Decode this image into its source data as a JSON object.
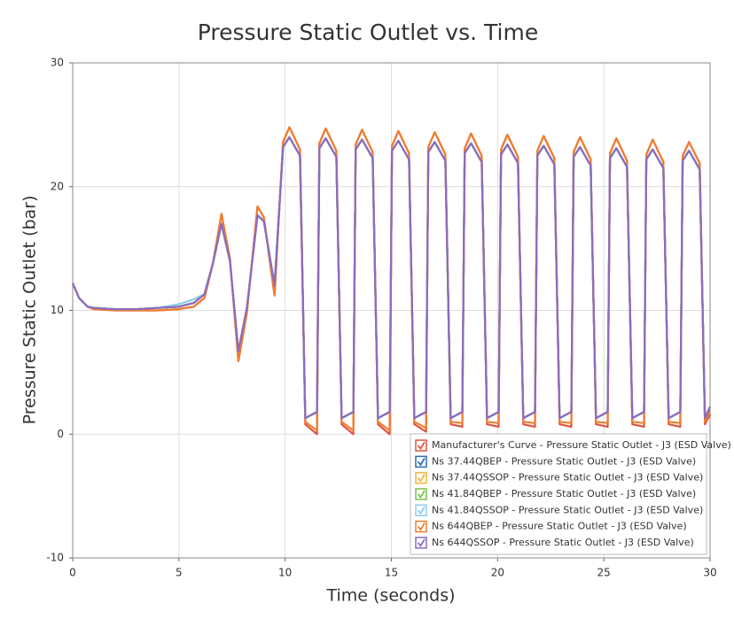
{
  "chart_data": {
    "type": "line",
    "title": "Pressure Static Outlet vs. Time",
    "xlabel": "Time (seconds)",
    "ylabel": "Pressure Static Outlet (bar)",
    "xlim": [
      0,
      30
    ],
    "ylim": [
      -10,
      30
    ],
    "xticks": [
      0,
      5,
      10,
      15,
      20,
      25,
      30
    ],
    "yticks": [
      -10,
      0,
      10,
      20,
      30
    ],
    "grid": true,
    "legend": "lower right",
    "x": [
      0,
      0.3,
      0.7,
      1,
      2,
      3,
      4,
      5,
      5.7,
      6.2,
      6.6,
      7,
      7.4,
      7.8,
      8.2,
      8.7,
      9,
      9.5,
      9.9,
      10.2,
      10.7,
      10.95,
      11.5,
      11.61,
      11.91,
      12.41,
      12.66,
      13.21,
      13.32,
      13.62,
      14.12,
      14.37,
      14.92,
      15.03,
      15.33,
      15.83,
      16.08,
      16.63,
      16.74,
      17.04,
      17.54,
      17.79,
      18.34,
      18.45,
      18.75,
      19.25,
      19.5,
      20.05,
      20.16,
      20.46,
      20.96,
      21.21,
      21.76,
      21.87,
      22.17,
      22.67,
      22.92,
      23.47,
      23.58,
      23.88,
      24.38,
      24.63,
      25.18,
      25.29,
      25.59,
      26.09,
      26.34,
      26.89,
      27.0,
      27.3,
      27.8,
      28.05,
      28.6,
      28.71,
      29.01,
      29.51,
      29.76,
      30
    ],
    "series": [
      {
        "name": "Manufacturer's Curve - Pressure Static Outlet - J3 (ESD Valve)",
        "color": "#e0533f",
        "values": [
          12.2,
          11,
          10.3,
          10.1,
          10.0,
          10.0,
          10.0,
          10.1,
          10.3,
          11.0,
          13.8,
          17.8,
          14.2,
          5.9,
          9.8,
          18.4,
          17.5,
          11.2,
          23.6,
          24.8,
          23.0,
          0.8,
          0.0,
          23.5,
          24.7,
          22.9,
          0.8,
          0.0,
          23.4,
          24.6,
          22.8,
          0.8,
          0.0,
          23.3,
          24.5,
          22.7,
          0.8,
          0.2,
          23.2,
          24.4,
          22.6,
          0.8,
          0.6,
          23.1,
          24.3,
          22.5,
          0.8,
          0.6,
          23.0,
          24.2,
          22.4,
          0.8,
          0.6,
          22.9,
          24.1,
          22.3,
          0.8,
          0.6,
          22.8,
          24.0,
          22.2,
          0.8,
          0.6,
          22.7,
          23.9,
          22.1,
          0.8,
          0.6,
          22.6,
          23.8,
          22.0,
          0.8,
          0.6,
          22.5,
          23.6,
          21.9,
          0.8,
          1.6
        ]
      },
      {
        "name": "Ns 37.44QBEP - Pressure Static Outlet - J3 (ESD Valve)",
        "color": "#2f6db5",
        "values": [
          12.2,
          11,
          10.3,
          10.2,
          10.1,
          10.1,
          10.2,
          10.3,
          10.6,
          11.3,
          13.8,
          17.0,
          14.0,
          6.7,
          10.2,
          17.7,
          17.2,
          12.0,
          23.2,
          24.0,
          22.5,
          1.3,
          1.8,
          23.1,
          23.9,
          22.4,
          1.3,
          1.8,
          23.0,
          23.8,
          22.3,
          1.3,
          1.8,
          22.9,
          23.7,
          22.2,
          1.3,
          1.8,
          22.8,
          23.6,
          22.1,
          1.3,
          1.8,
          22.7,
          23.5,
          22.0,
          1.3,
          1.8,
          22.6,
          23.4,
          21.9,
          1.3,
          1.8,
          22.5,
          23.3,
          21.8,
          1.3,
          1.8,
          22.4,
          23.2,
          21.7,
          1.3,
          1.8,
          22.3,
          23.1,
          21.6,
          1.3,
          1.8,
          22.2,
          23.0,
          21.5,
          1.3,
          1.8,
          22.1,
          22.9,
          21.4,
          1.3,
          2.2
        ]
      },
      {
        "name": "Ns 37.44QSSOP - Pressure Static Outlet - J3 (ESD Valve)",
        "color": "#f2b43c",
        "values": [
          12.2,
          11,
          10.3,
          10.2,
          10.1,
          10.1,
          10.2,
          10.3,
          10.6,
          11.3,
          13.8,
          17.0,
          14.0,
          6.7,
          10.2,
          17.7,
          17.2,
          12.0,
          23.2,
          24.0,
          22.5,
          1.3,
          1.8,
          23.1,
          23.9,
          22.4,
          1.3,
          1.8,
          23.0,
          23.8,
          22.3,
          1.3,
          1.8,
          22.9,
          23.7,
          22.2,
          1.3,
          1.8,
          22.8,
          23.6,
          22.1,
          1.3,
          1.8,
          22.7,
          23.5,
          22.0,
          1.3,
          1.8,
          22.6,
          23.4,
          21.9,
          1.3,
          1.8,
          22.5,
          23.3,
          21.8,
          1.3,
          1.8,
          22.4,
          23.2,
          21.7,
          1.3,
          1.8,
          22.3,
          23.1,
          21.6,
          1.3,
          1.8,
          22.2,
          23.0,
          21.5,
          1.3,
          1.8,
          22.1,
          22.9,
          21.4,
          1.3,
          2.2
        ]
      },
      {
        "name": "Ns 41.84QBEP - Pressure Static Outlet - J3 (ESD Valve)",
        "color": "#7cc04a",
        "values": [
          12.2,
          11,
          10.3,
          10.2,
          10.1,
          10.1,
          10.2,
          10.3,
          10.6,
          11.3,
          13.8,
          17.0,
          14.0,
          6.7,
          10.2,
          17.7,
          17.2,
          12.0,
          23.2,
          24.0,
          22.5,
          1.3,
          1.8,
          23.1,
          23.9,
          22.4,
          1.3,
          1.8,
          23.0,
          23.8,
          22.3,
          1.3,
          1.8,
          22.9,
          23.7,
          22.2,
          1.3,
          1.8,
          22.8,
          23.6,
          22.1,
          1.3,
          1.8,
          22.7,
          23.5,
          22.0,
          1.3,
          1.8,
          22.6,
          23.4,
          21.9,
          1.3,
          1.8,
          22.5,
          23.3,
          21.8,
          1.3,
          1.8,
          22.4,
          23.2,
          21.7,
          1.3,
          1.8,
          22.3,
          23.1,
          21.6,
          1.3,
          1.8,
          22.2,
          23.0,
          21.5,
          1.3,
          1.8,
          22.1,
          22.9,
          21.4,
          1.3,
          2.2
        ]
      },
      {
        "name": "Ns 41.84QSSOP - Pressure Static Outlet - J3 (ESD Valve)",
        "color": "#8ecbea",
        "values": [
          12.2,
          11,
          10.3,
          10.2,
          10.1,
          10.1,
          10.2,
          10.5,
          10.9,
          11.3,
          13.8,
          17.0,
          14.0,
          6.7,
          10.2,
          17.7,
          17.2,
          12.0,
          23.2,
          24.0,
          22.5,
          1.3,
          1.8,
          23.1,
          23.9,
          22.4,
          1.3,
          1.8,
          23.0,
          23.8,
          22.3,
          1.3,
          1.8,
          22.9,
          23.7,
          22.2,
          1.3,
          1.8,
          22.8,
          23.6,
          22.1,
          1.3,
          1.8,
          22.7,
          23.5,
          22.0,
          1.3,
          1.8,
          22.6,
          23.4,
          21.9,
          1.3,
          1.8,
          22.5,
          23.3,
          21.8,
          1.3,
          1.8,
          22.4,
          23.2,
          21.7,
          1.3,
          1.8,
          22.3,
          23.1,
          21.6,
          1.3,
          1.8,
          22.2,
          23.0,
          21.5,
          1.3,
          1.8,
          22.1,
          22.9,
          21.4,
          1.3,
          2.2
        ]
      },
      {
        "name": "Ns 644QBEP - Pressure Static Outlet - J3 (ESD Valve)",
        "color": "#f07d2e",
        "values": [
          12.2,
          11,
          10.3,
          10.1,
          10.0,
          10.0,
          10.0,
          10.1,
          10.3,
          11.0,
          13.8,
          17.8,
          14.2,
          5.9,
          9.8,
          18.4,
          17.5,
          11.2,
          23.6,
          24.8,
          23.0,
          1.0,
          0.3,
          23.5,
          24.7,
          22.9,
          1.0,
          0.3,
          23.4,
          24.6,
          22.8,
          1.0,
          0.3,
          23.3,
          24.5,
          22.7,
          1.0,
          0.5,
          23.2,
          24.4,
          22.6,
          1.0,
          0.9,
          23.1,
          24.3,
          22.5,
          1.0,
          0.9,
          23.0,
          24.2,
          22.4,
          1.0,
          0.9,
          22.9,
          24.1,
          22.3,
          1.0,
          0.9,
          22.8,
          24.0,
          22.2,
          1.0,
          0.9,
          22.7,
          23.9,
          22.1,
          1.0,
          0.9,
          22.6,
          23.8,
          22.0,
          1.0,
          0.9,
          22.5,
          23.6,
          21.9,
          1.0,
          1.9
        ]
      },
      {
        "name": "Ns 644QSSOP - Pressure Static Outlet - J3 (ESD Valve)",
        "color": "#8a6cc0",
        "values": [
          12.2,
          11,
          10.3,
          10.2,
          10.1,
          10.1,
          10.2,
          10.3,
          10.6,
          11.3,
          13.8,
          17.0,
          14.0,
          6.7,
          10.2,
          17.7,
          17.2,
          12.0,
          23.2,
          24.0,
          22.5,
          1.3,
          1.8,
          23.1,
          23.9,
          22.4,
          1.3,
          1.8,
          23.0,
          23.8,
          22.3,
          1.3,
          1.8,
          22.9,
          23.7,
          22.2,
          1.3,
          1.8,
          22.8,
          23.6,
          22.1,
          1.3,
          1.8,
          22.7,
          23.5,
          22.0,
          1.3,
          1.8,
          22.6,
          23.4,
          21.9,
          1.3,
          1.8,
          22.5,
          23.3,
          21.8,
          1.3,
          1.8,
          22.4,
          23.2,
          21.7,
          1.3,
          1.8,
          22.3,
          23.1,
          21.6,
          1.3,
          1.8,
          22.2,
          23.0,
          21.5,
          1.3,
          1.8,
          22.1,
          22.9,
          21.4,
          1.3,
          2.2
        ]
      }
    ]
  }
}
